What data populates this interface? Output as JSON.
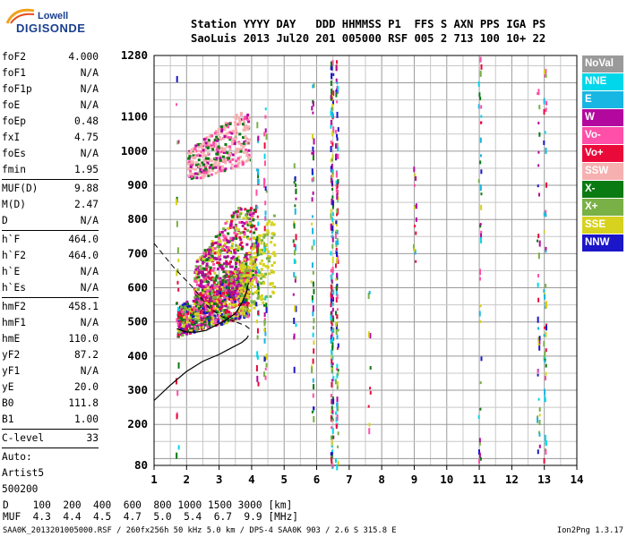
{
  "logo": {
    "line1": "Lowell",
    "line2": "DIGISONDE"
  },
  "header": {
    "row1": "Station YYYY DAY   DDD HHMMSS P1  FFS S AXN PPS IGA PS",
    "row2": "SaoLuis 2013 Jul20 201 005000 RSF 005 2 713 100 10+ 22"
  },
  "params": {
    "g1": [
      [
        "foF2",
        "4.000"
      ],
      [
        "foF1",
        "N/A"
      ],
      [
        "foF1p",
        "N/A"
      ],
      [
        "foE",
        "N/A"
      ],
      [
        "foEp",
        "0.48"
      ],
      [
        "fxI",
        "4.75"
      ],
      [
        "foEs",
        "N/A"
      ],
      [
        "fmin",
        "1.95"
      ]
    ],
    "g2": [
      [
        "MUF(D)",
        "9.88"
      ],
      [
        "M(D)",
        "2.47"
      ],
      [
        "D",
        "N/A"
      ]
    ],
    "g3": [
      [
        "h`F",
        "464.0"
      ],
      [
        "h`F2",
        "464.0"
      ],
      [
        "h`E",
        "N/A"
      ],
      [
        "h`Es",
        "N/A"
      ]
    ],
    "g4": [
      [
        "hmF2",
        "458.1"
      ],
      [
        "hmF1",
        "N/A"
      ],
      [
        "hmE",
        "110.0"
      ],
      [
        "yF2",
        "87.2"
      ],
      [
        "yF1",
        "N/A"
      ],
      [
        "yE",
        "20.0"
      ],
      [
        "B0",
        "111.8"
      ],
      [
        "B1",
        "1.00"
      ]
    ],
    "g5": [
      [
        "C-level",
        "33"
      ]
    ],
    "auto": [
      "Auto:",
      "Artist5",
      "500200"
    ]
  },
  "legend": [
    {
      "label": "NoVal",
      "color": "#9a9a9a"
    },
    {
      "label": "NNE",
      "color": "#00d7ea"
    },
    {
      "label": "E",
      "color": "#18b6e3"
    },
    {
      "label": "W",
      "color": "#b3089e"
    },
    {
      "label": "Vo-",
      "color": "#ff4fa8"
    },
    {
      "label": "Vo+",
      "color": "#ea0a3a"
    },
    {
      "label": "SSW",
      "color": "#f6b0b0"
    },
    {
      "label": "X-",
      "color": "#0a7a12"
    },
    {
      "label": "X+",
      "color": "#79b146"
    },
    {
      "label": "SSE",
      "color": "#d7d21d"
    },
    {
      "label": "NNW",
      "color": "#1b16c8"
    }
  ],
  "muf_table": {
    "row1": "D    100  200  400  600  800 1000 1500 3000 [km]",
    "row2": "MUF  4.3  4.4  4.5  4.7  5.0  5.4  6.7  9.9 [MHz]"
  },
  "footer": {
    "left": "SAA0K_2013201005000.RSF / 260fx256h 50 kHz 5.0 km / DPS-4 SAA0K 903 / 2.6 S 315.8 E",
    "right": "Ion2Png 1.3.17"
  },
  "chart_data": {
    "type": "scatter",
    "xlim": [
      1,
      14
    ],
    "ylim": [
      80,
      1280
    ],
    "xticks": [
      1,
      2,
      3,
      4,
      5,
      6,
      7,
      8,
      9,
      10,
      11,
      12,
      13,
      14
    ],
    "yticks": [
      80,
      200,
      300,
      400,
      500,
      600,
      700,
      800,
      900,
      1000,
      1100,
      1280
    ],
    "grid": true,
    "legend_position": "right",
    "clusters": [
      {
        "fmin": 1.7,
        "fmax": 3.9,
        "hmin": 460,
        "hmax": 620,
        "n": 900,
        "slope": 60,
        "colors": [
          "#b3089e",
          "#0a7a12",
          "#ff4fa8",
          "#d7d21d",
          "#79b146",
          "#ea0a3a",
          "#1b16c8"
        ]
      },
      {
        "fmin": 2.2,
        "fmax": 4.1,
        "hmin": 520,
        "hmax": 800,
        "n": 650,
        "slope": 110,
        "colors": [
          "#b3089e",
          "#b3089e",
          "#ff4fa8",
          "#0a7a12",
          "#d7d21d",
          "#79b146",
          "#ea0a3a"
        ]
      },
      {
        "fmin": 3.6,
        "fmax": 4.7,
        "hmin": 520,
        "hmax": 780,
        "n": 200,
        "slope": 60,
        "colors": [
          "#d7d21d",
          "#79b146",
          "#d7d21d"
        ]
      },
      {
        "fmin": 2.0,
        "fmax": 3.9,
        "hmin": 910,
        "hmax": 1080,
        "n": 420,
        "slope": 60,
        "colors": [
          "#f6b0b0",
          "#f6b0b0",
          "#f6b0b0",
          "#b3089e",
          "#0a7a12",
          "#ff4fa8"
        ]
      }
    ],
    "columns": [
      {
        "f": 6.45,
        "hmin": 80,
        "hmax": 1280,
        "n": 160
      },
      {
        "f": 6.6,
        "hmin": 80,
        "hmax": 1280,
        "n": 110
      },
      {
        "f": 5.85,
        "hmin": 200,
        "hmax": 1200,
        "n": 50
      },
      {
        "f": 5.3,
        "hmin": 320,
        "hmax": 980,
        "n": 30
      },
      {
        "f": 4.4,
        "hmin": 330,
        "hmax": 1130,
        "n": 40
      },
      {
        "f": 4.15,
        "hmin": 300,
        "hmax": 1150,
        "n": 40
      },
      {
        "f": 9.0,
        "hmin": 680,
        "hmax": 960,
        "n": 14
      },
      {
        "f": 11.0,
        "hmin": 80,
        "hmax": 1280,
        "n": 40
      },
      {
        "f": 12.8,
        "hmin": 100,
        "hmax": 1200,
        "n": 36
      },
      {
        "f": 13.0,
        "hmin": 100,
        "hmax": 1250,
        "n": 50
      },
      {
        "f": 7.6,
        "hmin": 150,
        "hmax": 650,
        "n": 10
      },
      {
        "f": 1.7,
        "hmin": 90,
        "hmax": 1260,
        "n": 24
      }
    ],
    "trace_vh": [
      [
        1,
        730
      ],
      [
        1.6,
        660
      ],
      [
        2.2,
        600
      ],
      [
        2.7,
        540
      ],
      [
        3.1,
        515
      ],
      [
        3.5,
        500
      ],
      [
        3.8,
        490
      ],
      [
        4.0,
        475
      ]
    ],
    "trace_x": [
      [
        1.7,
        480
      ],
      [
        2.0,
        470
      ],
      [
        2.3,
        470
      ],
      [
        2.6,
        475
      ],
      [
        2.9,
        490
      ],
      [
        3.2,
        505
      ],
      [
        3.5,
        525
      ],
      [
        3.7,
        555
      ],
      [
        3.85,
        590
      ],
      [
        3.9,
        615
      ]
    ],
    "profile": [
      [
        1,
        270
      ],
      [
        1.5,
        315
      ],
      [
        2.0,
        355
      ],
      [
        2.5,
        385
      ],
      [
        3.0,
        405
      ],
      [
        3.4,
        425
      ],
      [
        3.7,
        440
      ],
      [
        3.85,
        452
      ],
      [
        3.9,
        460
      ]
    ]
  }
}
